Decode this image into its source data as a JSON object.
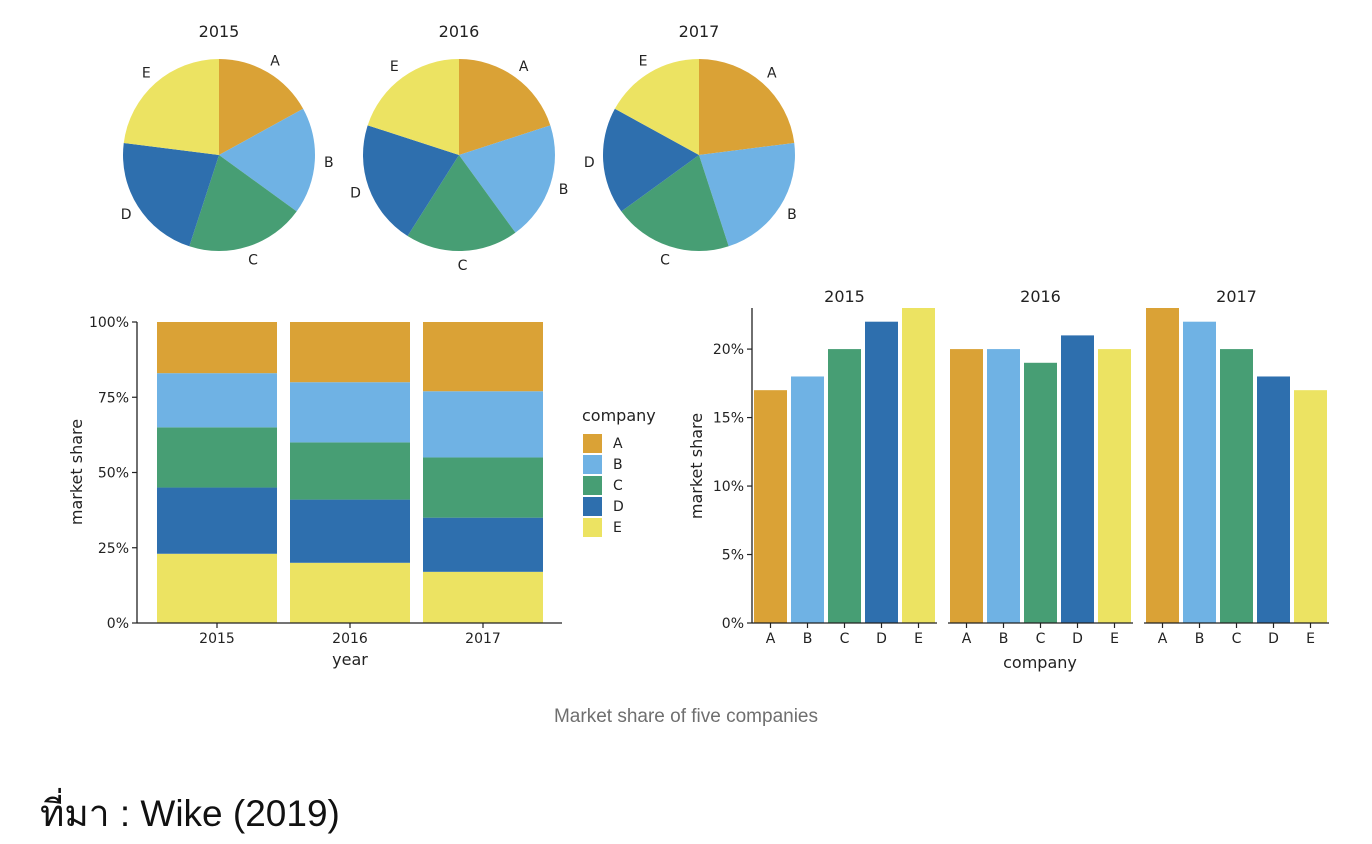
{
  "colors": {
    "A": "#DAA236",
    "B": "#6FB2E4",
    "C": "#479E74",
    "D": "#2E6FAE",
    "E": "#ECE362",
    "axis": "#222222"
  },
  "chart_data": [
    {
      "type": "pie",
      "facets": [
        {
          "title": "2015",
          "labels": [
            "A",
            "B",
            "C",
            "D",
            "E"
          ],
          "values": [
            17,
            18,
            20,
            22,
            23
          ]
        },
        {
          "title": "2016",
          "labels": [
            "A",
            "B",
            "C",
            "D",
            "E"
          ],
          "values": [
            20,
            20,
            19,
            21,
            20
          ]
        },
        {
          "title": "2017",
          "labels": [
            "A",
            "B",
            "C",
            "D",
            "E"
          ],
          "values": [
            23,
            22,
            20,
            18,
            17
          ]
        }
      ]
    },
    {
      "type": "bar",
      "stacked": true,
      "categories": [
        "2015",
        "2016",
        "2017"
      ],
      "series": [
        {
          "name": "A",
          "values": [
            17,
            20,
            23
          ]
        },
        {
          "name": "B",
          "values": [
            18,
            20,
            22
          ]
        },
        {
          "name": "C",
          "values": [
            20,
            19,
            20
          ]
        },
        {
          "name": "D",
          "values": [
            22,
            21,
            18
          ]
        },
        {
          "name": "E",
          "values": [
            23,
            20,
            17
          ]
        }
      ],
      "xlabel": "year",
      "ylabel": "market share",
      "ylim": [
        0,
        100
      ],
      "yticks": [
        "0%",
        "25%",
        "50%",
        "75%",
        "100%"
      ],
      "legend": {
        "title": "company",
        "position": "right",
        "entries": [
          "A",
          "B",
          "C",
          "D",
          "E"
        ]
      }
    },
    {
      "type": "bar",
      "facets": [
        {
          "title": "2015",
          "categories": [
            "A",
            "B",
            "C",
            "D",
            "E"
          ],
          "values": [
            17,
            18,
            20,
            22,
            23
          ]
        },
        {
          "title": "2016",
          "categories": [
            "A",
            "B",
            "C",
            "D",
            "E"
          ],
          "values": [
            20,
            20,
            19,
            21,
            20
          ]
        },
        {
          "title": "2017",
          "categories": [
            "A",
            "B",
            "C",
            "D",
            "E"
          ],
          "values": [
            23,
            22,
            20,
            18,
            17
          ]
        }
      ],
      "xlabel": "company",
      "ylabel": "market share",
      "ylim": [
        0,
        23
      ],
      "yticks": [
        "0%",
        "5%",
        "10%",
        "15%",
        "20%"
      ]
    }
  ],
  "caption": "Market share of five companies",
  "source": "ที่มา : Wike (2019)"
}
